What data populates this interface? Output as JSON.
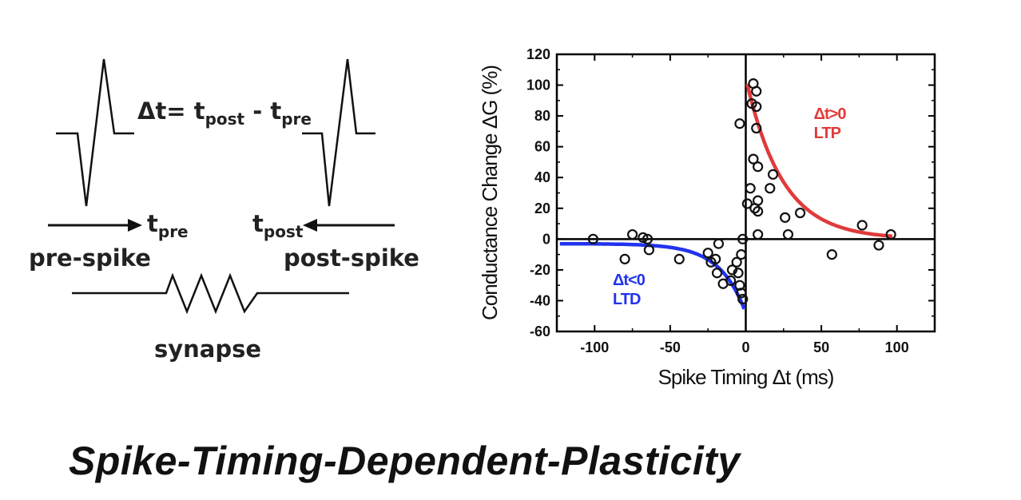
{
  "diagram": {
    "delta_t_symbol": "Δt= t",
    "post_sub": "post",
    "minus": " - t",
    "pre_sub": "pre",
    "t_letter": "t",
    "pre_spike_label": "pre-spike",
    "post_spike_label": "post-spike",
    "synapse_label": "synapse"
  },
  "footer": {
    "title": "Spike-Timing-Dependent-Plasticity"
  },
  "colors": {
    "ltp": "#e03a3a",
    "ltd": "#2233ee",
    "axis": "#000000"
  },
  "chart_data": {
    "type": "scatter",
    "xlabel": "Spike Timing Δt (ms)",
    "ylabel": "Conductance Change ΔG (%)",
    "xlim": [
      -125,
      125
    ],
    "ylim": [
      -60,
      120
    ],
    "xticks": [
      -100,
      -50,
      0,
      50,
      100
    ],
    "yticks": [
      -60,
      -40,
      -20,
      0,
      20,
      40,
      60,
      80,
      100,
      120
    ],
    "grid": false,
    "points": [
      {
        "x": -101,
        "y": 0
      },
      {
        "x": -80,
        "y": -13
      },
      {
        "x": -75,
        "y": 3
      },
      {
        "x": -68,
        "y": 1
      },
      {
        "x": -65,
        "y": 0
      },
      {
        "x": -64,
        "y": -7
      },
      {
        "x": -44,
        "y": -13
      },
      {
        "x": -25,
        "y": -9
      },
      {
        "x": -23,
        "y": -15
      },
      {
        "x": -20,
        "y": -13
      },
      {
        "x": -18,
        "y": -3
      },
      {
        "x": -19,
        "y": -22
      },
      {
        "x": -15,
        "y": -29
      },
      {
        "x": -10,
        "y": -27
      },
      {
        "x": -9,
        "y": -20
      },
      {
        "x": -6,
        "y": -15
      },
      {
        "x": -5,
        "y": -22
      },
      {
        "x": -4,
        "y": -30
      },
      {
        "x": -3,
        "y": -10
      },
      {
        "x": -3,
        "y": -35
      },
      {
        "x": -2,
        "y": -39
      },
      {
        "x": -4,
        "y": 75
      },
      {
        "x": -2,
        "y": 0
      },
      {
        "x": 1,
        "y": 23
      },
      {
        "x": 3,
        "y": 33
      },
      {
        "x": 4,
        "y": 88
      },
      {
        "x": 5,
        "y": 101
      },
      {
        "x": 5,
        "y": 52
      },
      {
        "x": 6,
        "y": 20
      },
      {
        "x": 7,
        "y": 96
      },
      {
        "x": 7,
        "y": 86
      },
      {
        "x": 7,
        "y": 72
      },
      {
        "x": 8,
        "y": 47
      },
      {
        "x": 8,
        "y": 25
      },
      {
        "x": 8,
        "y": 18
      },
      {
        "x": 8,
        "y": 3
      },
      {
        "x": 16,
        "y": 33
      },
      {
        "x": 18,
        "y": 42
      },
      {
        "x": 26,
        "y": 14
      },
      {
        "x": 28,
        "y": 3
      },
      {
        "x": 36,
        "y": 17
      },
      {
        "x": 57,
        "y": -10
      },
      {
        "x": 77,
        "y": 9
      },
      {
        "x": 88,
        "y": -4
      },
      {
        "x": 96,
        "y": 3
      }
    ],
    "series": [
      {
        "name": "LTP",
        "label_lines": [
          "Δt>0",
          "LTP"
        ],
        "fit": "exponential",
        "x_range": [
          1,
          97
        ],
        "a": 105,
        "tau": 24,
        "c": 0
      },
      {
        "name": "LTD",
        "label_lines": [
          "Δt<0",
          "LTD"
        ],
        "fit": "exponential",
        "x_range": [
          -123,
          -1
        ],
        "a": -45,
        "tau": 17,
        "c": -3
      }
    ]
  }
}
